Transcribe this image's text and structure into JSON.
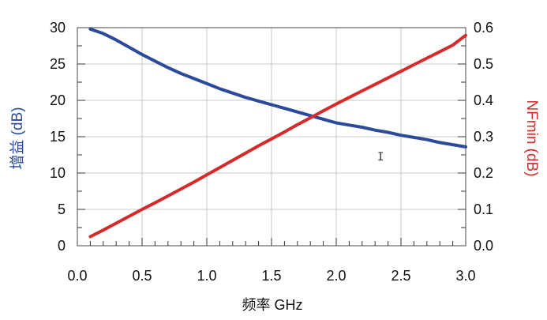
{
  "chart_data": {
    "type": "line",
    "xlabel": "频率 GHz",
    "ylabel_left": "增益 (dB)",
    "ylabel_right": "NFmin (dB)",
    "xlim": [
      0.0,
      3.0
    ],
    "ylim_left": [
      0,
      30
    ],
    "ylim_right": [
      0.0,
      0.6
    ],
    "x_ticks": [
      "0.0",
      "0.5",
      "1.0",
      "1.5",
      "2.0",
      "2.5",
      "3.0"
    ],
    "y_left_ticks": [
      "0",
      "5",
      "10",
      "15",
      "20",
      "25",
      "30"
    ],
    "y_right_ticks": [
      "0.0",
      "0.1",
      "0.2",
      "0.3",
      "0.4",
      "0.5",
      "0.6"
    ],
    "grid": true,
    "series": [
      {
        "axis": "left",
        "color": "#2b4a9b",
        "x": [
          0.1,
          0.2,
          0.3,
          0.4,
          0.5,
          0.6,
          0.7,
          0.8,
          0.9,
          1.0,
          1.1,
          1.2,
          1.3,
          1.4,
          1.5,
          1.6,
          1.7,
          1.8,
          1.9,
          2.0,
          2.1,
          2.2,
          2.3,
          2.4,
          2.5,
          2.6,
          2.7,
          2.8,
          2.9,
          3.0
        ],
        "values": [
          29.8,
          29.2,
          28.3,
          27.3,
          26.3,
          25.4,
          24.5,
          23.7,
          23.0,
          22.3,
          21.6,
          21.0,
          20.4,
          19.9,
          19.4,
          18.9,
          18.4,
          17.9,
          17.4,
          16.9,
          16.6,
          16.3,
          15.9,
          15.6,
          15.2,
          14.9,
          14.6,
          14.2,
          13.9,
          13.6
        ]
      },
      {
        "axis": "right",
        "color": "#d62b2b",
        "x": [
          0.1,
          0.2,
          0.3,
          0.4,
          0.5,
          0.6,
          0.7,
          0.8,
          0.9,
          1.0,
          1.1,
          1.2,
          1.3,
          1.4,
          1.5,
          1.6,
          1.7,
          1.8,
          1.9,
          2.0,
          2.1,
          2.2,
          2.3,
          2.4,
          2.5,
          2.6,
          2.7,
          2.8,
          2.9,
          3.0
        ],
        "values": [
          0.025,
          0.043,
          0.062,
          0.081,
          0.1,
          0.118,
          0.137,
          0.156,
          0.175,
          0.195,
          0.215,
          0.235,
          0.255,
          0.275,
          0.294,
          0.313,
          0.333,
          0.352,
          0.371,
          0.39,
          0.408,
          0.426,
          0.444,
          0.462,
          0.48,
          0.498,
          0.516,
          0.534,
          0.552,
          0.579
        ]
      }
    ],
    "cursor_glyph": "I"
  }
}
